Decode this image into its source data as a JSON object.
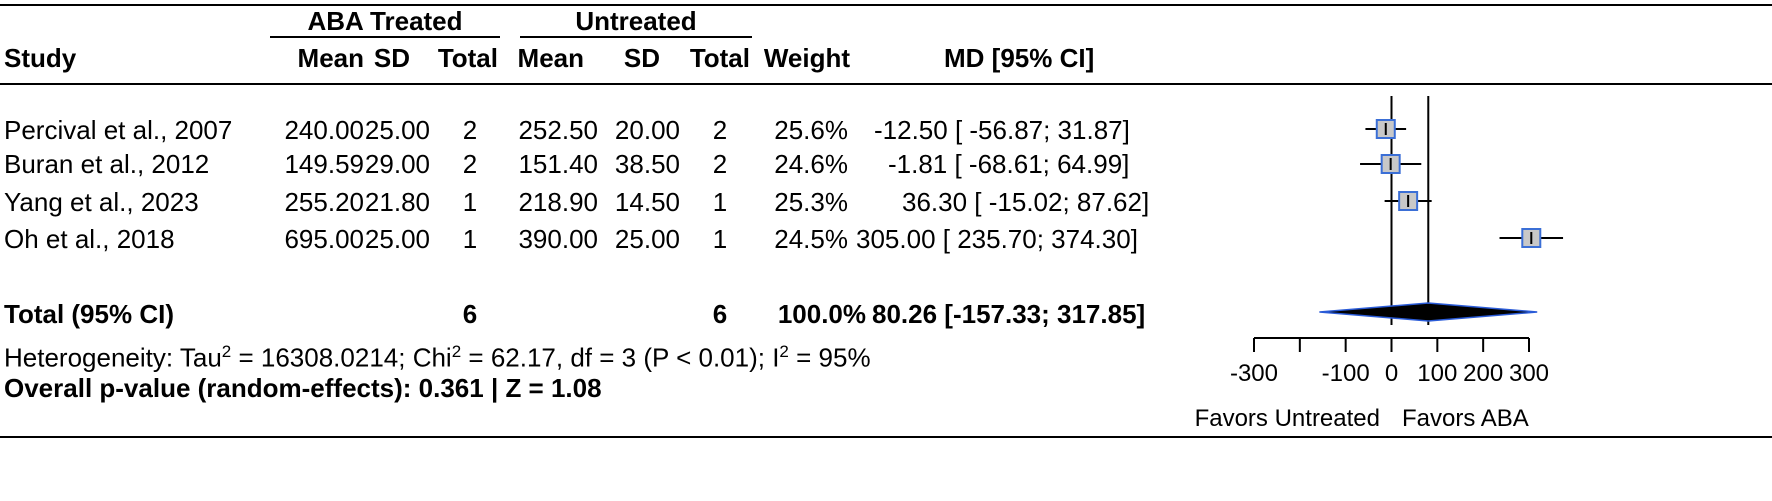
{
  "header": {
    "groups": [
      "ABA Treated",
      "Untreated"
    ],
    "study": "Study",
    "mean": "Mean",
    "sd": "SD",
    "total": "Total",
    "weight": "Weight",
    "md": "MD [95% CI]"
  },
  "rows": [
    {
      "study": "Percival et al., 2007",
      "a_mean": "240.00",
      "a_sd": "25.00",
      "a_total": "2",
      "u_mean": "252.50",
      "u_sd": "20.00",
      "u_total": "2",
      "weight": "25.6%",
      "md": "-12.50 [ -56.87;  31.87]"
    },
    {
      "study": "Buran et al., 2012",
      "a_mean": "149.59",
      "a_sd": "29.00",
      "a_total": "2",
      "u_mean": "151.40",
      "u_sd": "38.50",
      "u_total": "2",
      "weight": "24.6%",
      "md": "-1.81 [ -68.61;  64.99]"
    },
    {
      "study": "Yang et al., 2023",
      "a_mean": "255.20",
      "a_sd": "21.80",
      "a_total": "1",
      "u_mean": "218.90",
      "u_sd": "14.50",
      "u_total": "1",
      "weight": "25.3%",
      "md": "36.30 [ -15.02;  87.62]"
    },
    {
      "study": "Oh et al., 2018",
      "a_mean": "695.00",
      "a_sd": "25.00",
      "a_total": "1",
      "u_mean": "390.00",
      "u_sd": "25.00",
      "u_total": "1",
      "weight": "24.5%",
      "md": "305.00 [ 235.70; 374.30]"
    }
  ],
  "total": {
    "label": "Total (95% CI)",
    "a_total": "6",
    "u_total": "6",
    "weight": "100.0%",
    "md": "80.26 [-157.33; 317.85]"
  },
  "heterogeneity": {
    "prefix": "Heterogeneity: Tau",
    "sup1": "2",
    "mid1": " = 16308.0214; Chi",
    "sup2": "2",
    "mid2": " = 62.17, df = 3 (P < 0.01); I",
    "sup3": "2",
    "suffix": " = 95%"
  },
  "overall": "Overall p-value (random-effects): 0.361 | Z = 1.08",
  "axis": {
    "left_label": "Favors Untreated",
    "right_label": "Favors ABA"
  },
  "chart_data": {
    "type": "forest",
    "xlim": [
      -300,
      300
    ],
    "ticks": [
      -300,
      -100,
      0,
      100,
      200,
      300
    ],
    "reference_line": 0,
    "overall_line": 80.26,
    "studies": [
      {
        "name": "Percival et al., 2007",
        "md": -12.5,
        "lower": -56.87,
        "upper": 31.87,
        "weight": 25.6
      },
      {
        "name": "Buran et al., 2012",
        "md": -1.81,
        "lower": -68.61,
        "upper": 64.99,
        "weight": 24.6
      },
      {
        "name": "Yang et al., 2023",
        "md": 36.3,
        "lower": -15.02,
        "upper": 87.62,
        "weight": 25.3
      },
      {
        "name": "Oh et al., 2018",
        "md": 305.0,
        "lower": 235.7,
        "upper": 374.3,
        "weight": 24.5
      }
    ],
    "pooled": {
      "md": 80.26,
      "lower": -157.33,
      "upper": 317.85
    },
    "colors": {
      "box_fill": "#c8c8c8",
      "box_border": "#3b6fd6",
      "diamond": "#000000",
      "diamond_edge": "#2a5bd7"
    }
  }
}
